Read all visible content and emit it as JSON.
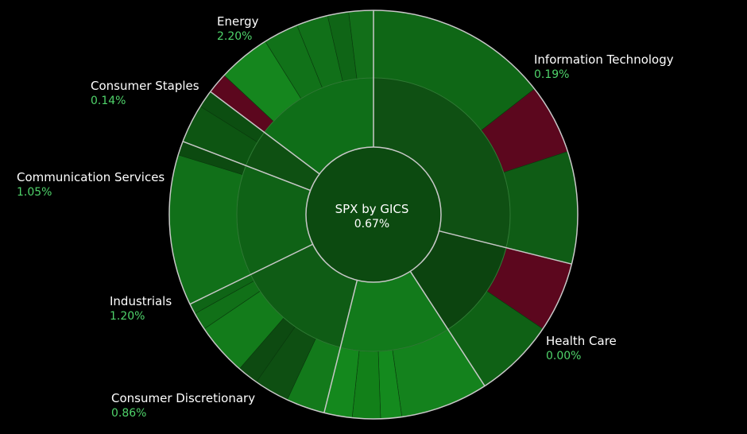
{
  "chart_data": {
    "type": "sunburst",
    "title": "SPX by GICS",
    "total_change": "0.67%",
    "colors": {
      "background": "#000000",
      "up_dark": "#0f4f12",
      "up": "#116f19",
      "up_bright": "#1a8a22",
      "down": "#5c071e",
      "positive_text": "#4fd36a",
      "border": "#c8c8c8"
    },
    "sectors": [
      {
        "name": "Information Technology",
        "change": "0.19%",
        "start": 0,
        "end": 104,
        "color": "#0f5013",
        "children": [
          {
            "start": 0,
            "end": 52,
            "color": "#0f6716"
          },
          {
            "start": 52,
            "end": 72,
            "color": "#5c071e"
          },
          {
            "start": 72,
            "end": 104,
            "color": "#0f5c15"
          }
        ]
      },
      {
        "name": "Health Care",
        "change": "0.00%",
        "start": 104,
        "end": 147,
        "color": "#0c440f",
        "children": [
          {
            "start": 104,
            "end": 124,
            "color": "#5c071e"
          },
          {
            "start": 124,
            "end": 147,
            "color": "#0f6115"
          }
        ]
      },
      {
        "name": "Consumer Discretionary",
        "change": "0.86%",
        "start": 147,
        "end": 194,
        "color": "#127a1b",
        "children": [
          {
            "start": 147,
            "end": 172,
            "color": "#14821d"
          },
          {
            "start": 172,
            "end": 178,
            "color": "#148a1e"
          },
          {
            "start": 178,
            "end": 186,
            "color": "#128019"
          },
          {
            "start": 186,
            "end": 194,
            "color": "#14881d"
          }
        ]
      },
      {
        "name": "Industrials",
        "change": "1.20%",
        "start": 194,
        "end": 244,
        "color": "#0f5c15",
        "children": [
          {
            "start": 194,
            "end": 205,
            "color": "#137a1b"
          },
          {
            "start": 205,
            "end": 215,
            "color": "#0e4f12"
          },
          {
            "start": 215,
            "end": 221,
            "color": "#0d4a11"
          },
          {
            "start": 221,
            "end": 236,
            "color": "#137c1b"
          },
          {
            "start": 236,
            "end": 241,
            "color": "#117018"
          },
          {
            "start": 241,
            "end": 244,
            "color": "#0f6516"
          }
        ]
      },
      {
        "name": "Communication Services",
        "change": "1.05%",
        "start": 244,
        "end": 291,
        "color": "#0f6216",
        "children": [
          {
            "start": 244,
            "end": 287,
            "color": "#117019"
          },
          {
            "start": 287,
            "end": 291,
            "color": "#0c4a10"
          }
        ]
      },
      {
        "name": "Consumer Staples",
        "change": "0.14%",
        "start": 291,
        "end": 307,
        "color": "#0e5012",
        "children": [
          {
            "start": 291,
            "end": 302,
            "color": "#0d5512"
          },
          {
            "start": 302,
            "end": 307,
            "color": "#0c4e11"
          }
        ]
      },
      {
        "name": "Energy",
        "change": "2.20%",
        "start": 307,
        "end": 360,
        "color": "#0f6e18",
        "children": [
          {
            "start": 307,
            "end": 313,
            "color": "#5c071e"
          },
          {
            "start": 313,
            "end": 328,
            "color": "#15861e"
          },
          {
            "start": 328,
            "end": 338,
            "color": "#117219"
          },
          {
            "start": 338,
            "end": 347,
            "color": "#117019"
          },
          {
            "start": 347,
            "end": 353,
            "color": "#0f6516"
          },
          {
            "start": 353,
            "end": 360,
            "color": "#126f19"
          }
        ]
      }
    ]
  }
}
